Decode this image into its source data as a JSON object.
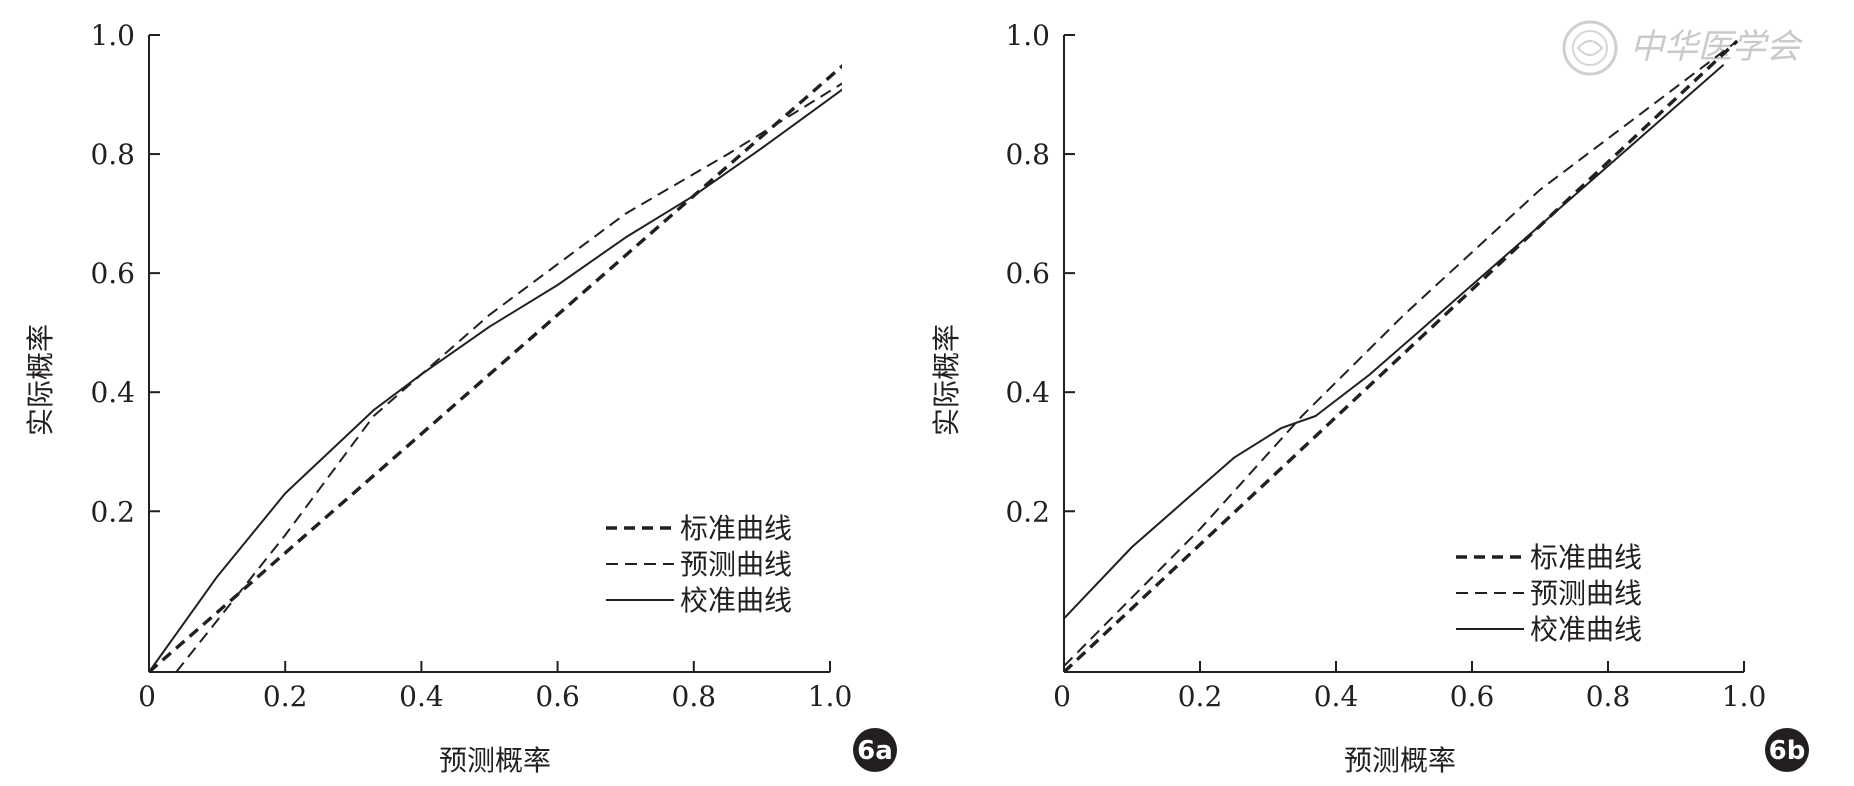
{
  "watermark": {
    "text": "中华医学会"
  },
  "chart_data": [
    {
      "type": "line",
      "panel_label": "6a",
      "xlabel": "预测概率",
      "ylabel": "实际概率",
      "xlim": [
        0,
        1.0
      ],
      "ylim": [
        -0.07,
        1.0
      ],
      "x_ticks": [
        "0",
        "0.2",
        "0.4",
        "0.6",
        "0.8",
        "1.0"
      ],
      "x_tick_values": [
        0,
        0.2,
        0.4,
        0.6,
        0.8,
        1.0
      ],
      "y_ticks": [
        "0.2",
        "0.4",
        "0.6",
        "0.8",
        "1.0"
      ],
      "y_tick_values": [
        0.2,
        0.4,
        0.6,
        0.8,
        1.0
      ],
      "grid": false,
      "legend_position": "bottom-right",
      "series": [
        {
          "name": "标准曲线",
          "style": "bold-dash",
          "x": [
            0,
            1.05
          ],
          "y": [
            -0.07,
            0.98
          ]
        },
        {
          "name": "预测曲线",
          "style": "thin-dash",
          "x": [
            0.04,
            0.2,
            0.33,
            0.5,
            0.7,
            0.85,
            1.02
          ],
          "y": [
            -0.07,
            0.16,
            0.36,
            0.53,
            0.7,
            0.8,
            0.92
          ]
        },
        {
          "name": "校准曲线",
          "style": "solid",
          "x": [
            0,
            0.1,
            0.2,
            0.33,
            0.4,
            0.5,
            0.6,
            0.7,
            0.8,
            0.9,
            1.02
          ],
          "y": [
            -0.07,
            0.09,
            0.23,
            0.37,
            0.43,
            0.51,
            0.58,
            0.66,
            0.73,
            0.81,
            0.91
          ]
        }
      ]
    },
    {
      "type": "line",
      "panel_label": "6b",
      "xlabel": "预测概率",
      "ylabel": "实际概率",
      "xlim": [
        0,
        1.0
      ],
      "ylim": [
        -0.07,
        1.0
      ],
      "x_ticks": [
        "0",
        "0.2",
        "0.4",
        "0.6",
        "0.8",
        "1.0"
      ],
      "x_tick_values": [
        0,
        0.2,
        0.4,
        0.6,
        0.8,
        1.0
      ],
      "y_ticks": [
        "0.2",
        "0.4",
        "0.6",
        "0.8",
        "1.0"
      ],
      "y_tick_values": [
        0.2,
        0.4,
        0.6,
        0.8,
        1.0
      ],
      "grid": false,
      "legend_position": "bottom-right",
      "series": [
        {
          "name": "标准曲线",
          "style": "bold-dash",
          "x": [
            0,
            0.99
          ],
          "y": [
            -0.07,
            0.99
          ]
        },
        {
          "name": "预测曲线",
          "style": "thin-dash",
          "x": [
            0,
            0.2,
            0.35,
            0.5,
            0.7,
            0.99
          ],
          "y": [
            -0.06,
            0.17,
            0.36,
            0.53,
            0.74,
            0.99
          ]
        },
        {
          "name": "校准曲线",
          "style": "solid",
          "x": [
            0,
            0.1,
            0.17,
            0.25,
            0.32,
            0.37,
            0.45,
            0.52,
            0.6,
            0.7,
            0.8,
            0.9,
            0.97
          ],
          "y": [
            0.02,
            0.14,
            0.21,
            0.29,
            0.34,
            0.36,
            0.43,
            0.5,
            0.58,
            0.68,
            0.78,
            0.88,
            0.95
          ]
        }
      ]
    }
  ]
}
